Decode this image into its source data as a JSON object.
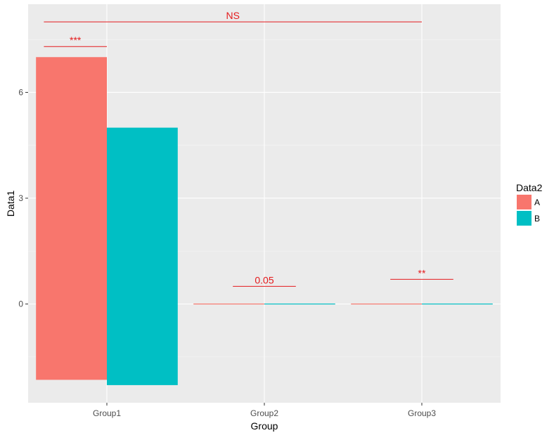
{
  "chart_data": {
    "type": "bar",
    "categories": [
      "Group1",
      "Group2",
      "Group3"
    ],
    "series": [
      {
        "name": "A",
        "values": [
          7.0,
          0.0,
          0.0
        ]
      },
      {
        "name": "B",
        "values": [
          5.0,
          0.0,
          0.0
        ]
      }
    ],
    "error_lower": [
      {
        "name": "A",
        "values": [
          -2.15,
          0.0,
          0.0
        ]
      },
      {
        "name": "B",
        "values": [
          -2.3,
          0.0,
          0.0
        ]
      }
    ],
    "xlabel": "Group",
    "ylabel": "Data1",
    "ylim": [
      -2.8,
      8.5
    ],
    "yticks": [
      0,
      3,
      6
    ],
    "ytick_labels": [
      "0",
      "3",
      "6"
    ],
    "grid": true,
    "legend": {
      "title": "Data2",
      "position": "right",
      "entries": [
        "A",
        "B"
      ]
    },
    "annotations": [
      {
        "label": "NS",
        "x_from": 0.6,
        "x_to": 3.0,
        "y": 8.0
      },
      {
        "label": "***",
        "x_from": 0.6,
        "x_to": 1.0,
        "y": 7.3
      },
      {
        "label": "0.05",
        "x_from": 1.8,
        "x_to": 2.2,
        "y": 0.5
      },
      {
        "label": "**",
        "x_from": 2.8,
        "x_to": 3.2,
        "y": 0.7
      }
    ],
    "colors": {
      "series": [
        "#F8766D",
        "#00BFC4"
      ],
      "annotation": "#e41a1c",
      "panel": "#EBEBEB",
      "grid_major": "#FFFFFF",
      "grid_minor": "#F5F5F5"
    }
  }
}
